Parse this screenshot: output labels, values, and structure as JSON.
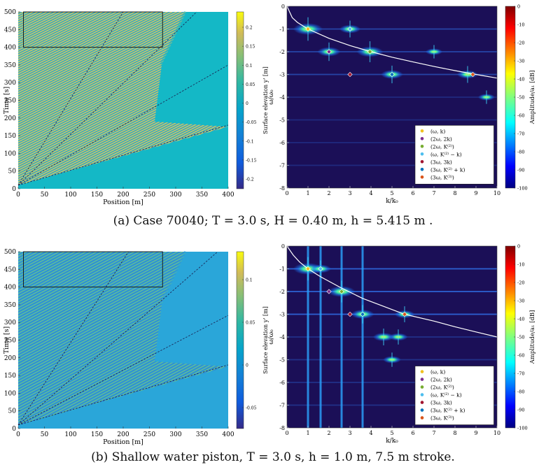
{
  "panels": [
    {
      "id": "a",
      "caption": "(a) Case 70040; T = 3.0 s, H = 0.40 m, h = 5.415 m .",
      "left": {
        "xlabel": "Position [m]",
        "ylabel": "Time [s]",
        "xticks": [
          "0",
          "50",
          "100",
          "150",
          "200",
          "250",
          "300",
          "350",
          "400"
        ],
        "yticks": [
          "0",
          "50",
          "100",
          "150",
          "200",
          "250",
          "300",
          "350",
          "400",
          "450",
          "500"
        ],
        "colorbar_label": "Surface elevation y' [m]",
        "colorbar_ticks": [
          "0.2",
          "0.15",
          "0.1",
          "0.05",
          "0",
          "-0.05",
          "-0.1",
          "-0.15",
          "-0.2"
        ]
      },
      "right": {
        "xlabel": "k/k₀",
        "ylabel": "ω/ω₀",
        "xticks": [
          "0",
          "1",
          "2",
          "3",
          "4",
          "5",
          "6",
          "7",
          "8",
          "9",
          "10"
        ],
        "yticks": [
          "0",
          "-1",
          "-2",
          "-3",
          "-4",
          "-5",
          "-6",
          "-7",
          "-8"
        ],
        "colorbar_label": "Amplitude/a₁ [dB]",
        "colorbar_ticks": [
          "0",
          "-10",
          "-20",
          "-30",
          "-40",
          "-50",
          "-60",
          "-70",
          "-80",
          "-90",
          "-100"
        ]
      }
    },
    {
      "id": "b",
      "caption": "(b) Shallow water piston, T = 3.0 s, h = 1.0 m, 7.5 m stroke.",
      "left": {
        "xlabel": "Position [m]",
        "ylabel": "Time [s]",
        "xticks": [
          "0",
          "50",
          "100",
          "150",
          "200",
          "250",
          "300",
          "350",
          "400"
        ],
        "yticks": [
          "0",
          "50",
          "100",
          "150",
          "200",
          "250",
          "300",
          "350",
          "400",
          "450",
          "500"
        ],
        "colorbar_label": "Surface elevation y' [m]",
        "colorbar_ticks": [
          "0.1",
          "0.05",
          "0",
          "-0.05"
        ]
      },
      "right": {
        "xlabel": "k/k₀",
        "ylabel": "ω/ω₀",
        "xticks": [
          "0",
          "1",
          "2",
          "3",
          "4",
          "5",
          "6",
          "7",
          "8",
          "9",
          "10"
        ],
        "yticks": [
          "0",
          "-1",
          "-2",
          "-3",
          "-4",
          "-5",
          "-6",
          "-7",
          "-8"
        ],
        "colorbar_label": "Amplitude/a₁ [dB]",
        "colorbar_ticks": [
          "0",
          "-10",
          "-20",
          "-30",
          "-40",
          "-50",
          "-60",
          "-70",
          "-80",
          "-90",
          "-100"
        ]
      }
    }
  ],
  "legend": [
    {
      "label": "(ω, k)",
      "color": "#f0c020"
    },
    {
      "label": "(2ω, 2k)",
      "color": "#7b2d8e"
    },
    {
      "label": "(2ω, K⁽²⁾)",
      "color": "#77ac30"
    },
    {
      "label": "(ω, K⁽²⁾ − k)",
      "color": "#4dbeee"
    },
    {
      "label": "(3ω, 3k)",
      "color": "#a2142f"
    },
    {
      "label": "(3ω, K⁽²⁾ + k)",
      "color": "#0072bd"
    },
    {
      "label": "(3ω, K⁽³⁾)",
      "color": "#d95319"
    }
  ],
  "chart_data": [
    {
      "panel": "a-left",
      "type": "heatmap",
      "xlabel": "Position [m]",
      "ylabel": "Time [s]",
      "xlim": [
        0,
        400
      ],
      "ylim": [
        0,
        500
      ],
      "colorbar": {
        "label": "Surface elevation y' [m]",
        "range": [
          -0.22,
          0.22
        ]
      },
      "wave_front_x": [
        320,
        260
      ],
      "highlight_box": {
        "x": [
          10,
          275
        ],
        "y": [
          400,
          500
        ]
      },
      "dashed_rays": [
        {
          "x": [
            0,
            400
          ],
          "y": [
            10,
            180
          ]
        },
        {
          "x": [
            0,
            400
          ],
          "y": [
            10,
            350
          ]
        },
        {
          "x": [
            0,
            340
          ],
          "y": [
            10,
            500
          ]
        },
        {
          "x": [
            0,
            200
          ],
          "y": [
            10,
            500
          ]
        }
      ]
    },
    {
      "panel": "a-right",
      "type": "heatmap",
      "xlabel": "k/k₀",
      "ylabel": "ω/ω₀",
      "xlim": [
        0,
        10
      ],
      "ylim": [
        -8,
        0
      ],
      "colorbar": {
        "label": "Amplitude/a₁ [dB]",
        "range": [
          -100,
          0
        ]
      },
      "dispersion_curve": {
        "k": [
          0,
          0.25,
          0.5,
          1,
          2,
          3,
          4,
          5,
          6,
          7,
          8,
          9,
          10
        ],
        "w": [
          0,
          -0.5,
          -0.71,
          -1,
          -1.41,
          -1.73,
          -2,
          -2.24,
          -2.45,
          -2.65,
          -2.83,
          -3,
          -3.16
        ]
      },
      "peaks": [
        {
          "k": 1.0,
          "w": -1,
          "strength": 1.0
        },
        {
          "k": 3.0,
          "w": -1,
          "strength": 0.6
        },
        {
          "k": 2.0,
          "w": -2,
          "strength": 0.7
        },
        {
          "k": 3.95,
          "w": -2,
          "strength": 0.85
        },
        {
          "k": 5.0,
          "w": -3,
          "strength": 0.65
        },
        {
          "k": 8.6,
          "w": -3,
          "strength": 0.6
        },
        {
          "k": 7.0,
          "w": -2,
          "strength": 0.4
        },
        {
          "k": 9.5,
          "w": -4,
          "strength": 0.4
        }
      ],
      "markers": [
        {
          "k": 1.0,
          "w": -1,
          "legend": 0
        },
        {
          "k": 2.0,
          "w": -2,
          "legend": 1
        },
        {
          "k": 3.95,
          "w": -2,
          "legend": 2
        },
        {
          "k": 3.0,
          "w": -1,
          "legend": 3
        },
        {
          "k": 3.0,
          "w": -3,
          "legend": 4
        },
        {
          "k": 5.0,
          "w": -3,
          "legend": 5
        },
        {
          "k": 8.85,
          "w": -3,
          "legend": 6
        }
      ]
    },
    {
      "panel": "b-left",
      "type": "heatmap",
      "xlabel": "Position [m]",
      "ylabel": "Time [s]",
      "xlim": [
        0,
        400
      ],
      "ylim": [
        0,
        500
      ],
      "colorbar": {
        "label": "Surface elevation y' [m]",
        "range": [
          -0.1,
          0.15
        ]
      },
      "wave_front_x": [
        320,
        260
      ],
      "highlight_box": {
        "x": [
          10,
          275
        ],
        "y": [
          400,
          500
        ]
      },
      "dashed_rays": [
        {
          "x": [
            0,
            400
          ],
          "y": [
            10,
            180
          ]
        },
        {
          "x": [
            0,
            400
          ],
          "y": [
            10,
            320
          ]
        },
        {
          "x": [
            0,
            380
          ],
          "y": [
            10,
            500
          ]
        },
        {
          "x": [
            0,
            210
          ],
          "y": [
            10,
            500
          ]
        }
      ]
    },
    {
      "panel": "b-right",
      "type": "heatmap",
      "xlabel": "k/k₀",
      "ylabel": "ω/ω₀",
      "xlim": [
        0,
        10
      ],
      "ylim": [
        -8,
        0
      ],
      "colorbar": {
        "label": "Amplitude/a₁ [dB]",
        "range": [
          -100,
          0
        ]
      },
      "dispersion_curve": {
        "k": [
          0,
          0.3,
          0.6,
          1,
          1.6,
          2.6,
          3.6,
          5.6,
          7,
          8,
          9,
          10
        ],
        "w": [
          0,
          -0.4,
          -0.7,
          -1,
          -1.35,
          -1.85,
          -2.3,
          -3,
          -3.3,
          -3.55,
          -3.78,
          -4
        ]
      },
      "vertical_lines_k": [
        1.0,
        1.6,
        2.6,
        3.6
      ],
      "peaks": [
        {
          "k": 1.0,
          "w": -1,
          "strength": 1.0
        },
        {
          "k": 1.6,
          "w": -1,
          "strength": 0.6
        },
        {
          "k": 2.6,
          "w": -2,
          "strength": 0.9
        },
        {
          "k": 3.6,
          "w": -3,
          "strength": 0.7
        },
        {
          "k": 4.6,
          "w": -4,
          "strength": 0.6
        },
        {
          "k": 5.6,
          "w": -3,
          "strength": 0.55
        },
        {
          "k": 5.3,
          "w": -4,
          "strength": 0.5
        },
        {
          "k": 5.0,
          "w": -5,
          "strength": 0.45
        }
      ],
      "markers": [
        {
          "k": 1.0,
          "w": -1,
          "legend": 0
        },
        {
          "k": 2.0,
          "w": -2,
          "legend": 1
        },
        {
          "k": 2.6,
          "w": -2,
          "legend": 2
        },
        {
          "k": 1.6,
          "w": -1,
          "legend": 3
        },
        {
          "k": 3.0,
          "w": -3,
          "legend": 4
        },
        {
          "k": 3.6,
          "w": -3,
          "legend": 5
        },
        {
          "k": 5.6,
          "w": -3,
          "legend": 6
        }
      ]
    }
  ]
}
